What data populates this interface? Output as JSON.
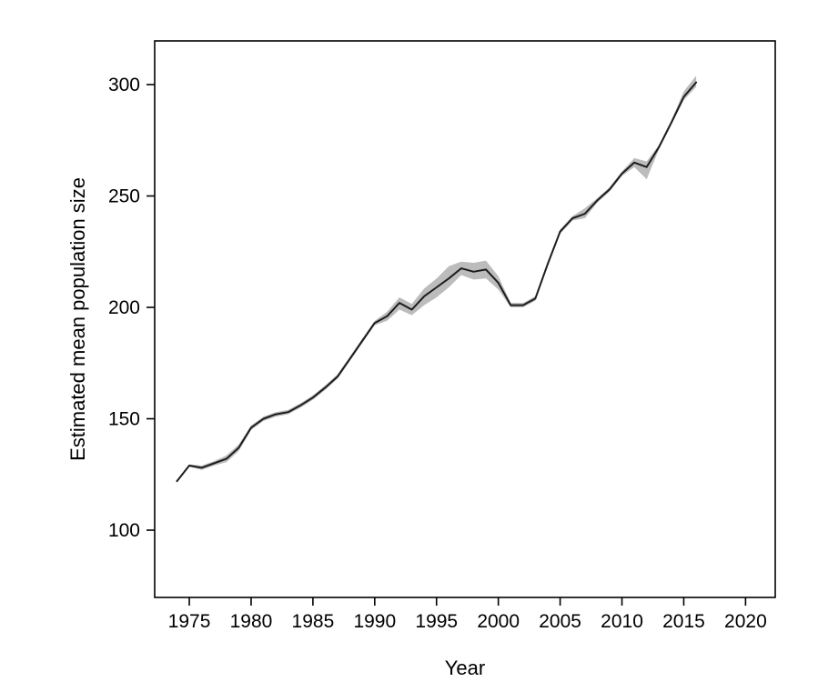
{
  "page": {
    "background": "#ffffff"
  },
  "chart_data": {
    "type": "line",
    "title": "",
    "xlabel": "Year",
    "ylabel": "Estimated mean population size",
    "x_tick_labels": [
      "1975",
      "1980",
      "1985",
      "1990",
      "1995",
      "2000",
      "2005",
      "2010",
      "2015",
      "2020"
    ],
    "x_tick_values": [
      1975,
      1980,
      1985,
      1990,
      1995,
      2000,
      2005,
      2010,
      2015,
      2020
    ],
    "y_tick_labels": [
      "100",
      "150",
      "200",
      "250",
      "300"
    ],
    "y_tick_values": [
      100,
      150,
      200,
      250,
      300
    ],
    "xlim": [
      1972.2,
      2022.4
    ],
    "ylim": [
      69.8,
      319.6
    ],
    "grid": false,
    "legend": "none",
    "frame": "box",
    "line_color": "#1c1c1c",
    "band_color": "#bcbcbc",
    "axis_color": "#000000",
    "x": [
      1974,
      1975,
      1976,
      1977,
      1978,
      1979,
      1980,
      1981,
      1982,
      1983,
      1984,
      1985,
      1986,
      1987,
      1988,
      1989,
      1990,
      1991,
      1992,
      1993,
      1994,
      1995,
      1996,
      1997,
      1998,
      1999,
      2000,
      2001,
      2002,
      2003,
      2004,
      2005,
      2006,
      2007,
      2008,
      2009,
      2010,
      2011,
      2012,
      2013,
      2014,
      2015,
      2016
    ],
    "series": [
      {
        "name": "estimated-mean",
        "values": [
          122,
          129,
          128,
          130,
          132,
          137,
          146,
          150,
          152,
          153,
          156,
          159.5,
          164,
          169,
          177,
          185,
          193,
          196,
          202,
          199,
          205,
          209,
          213,
          217.5,
          216,
          217,
          211,
          201,
          201,
          204,
          219.5,
          234,
          240,
          242,
          248,
          253,
          260,
          265,
          263,
          272,
          283,
          294.5,
          301
        ]
      }
    ],
    "band": {
      "name": "uncertainty-band",
      "lower": [
        122,
        128.5,
        127,
        129,
        130.5,
        135.5,
        145,
        149,
        151,
        152,
        155,
        158.5,
        163,
        168,
        176,
        184,
        192,
        194,
        199,
        196.5,
        201,
        204.5,
        209,
        214.5,
        212.5,
        213,
        208,
        200,
        200,
        203,
        218.5,
        233,
        239,
        240,
        247,
        252,
        259,
        263,
        257.5,
        271,
        282,
        293,
        299
      ],
      "upper": [
        122,
        129.5,
        129,
        131,
        133.5,
        138.5,
        147,
        151,
        153,
        154,
        157,
        160.5,
        165,
        170,
        178,
        186,
        194,
        198,
        204.5,
        201.5,
        208.5,
        213,
        218.5,
        220.5,
        220,
        221,
        214,
        202,
        202,
        205,
        220.5,
        235,
        241,
        244.5,
        249,
        254,
        261,
        267,
        265.5,
        273,
        284,
        297,
        304
      ]
    }
  }
}
